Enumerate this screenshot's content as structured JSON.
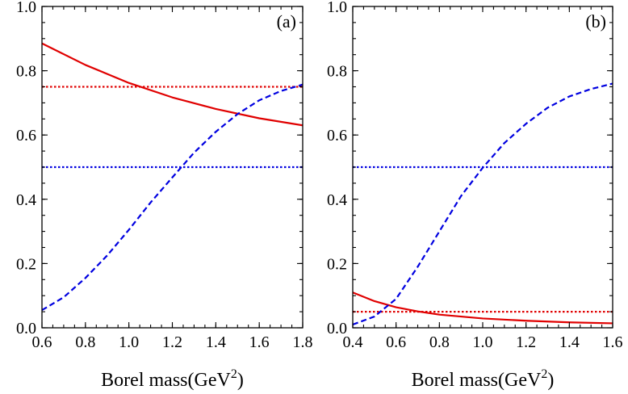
{
  "chart_data": [
    {
      "type": "line",
      "panel_label": "(a)",
      "xlabel_main": "Borel mass(GeV",
      "xlabel_sup": "2",
      "xlabel_tail": ")",
      "xlim": [
        0.6,
        1.8
      ],
      "ylim": [
        0.0,
        1.0
      ],
      "x_ticks": [
        "0.6",
        "0.8",
        "1.0",
        "1.2",
        "1.4",
        "1.6",
        "1.8"
      ],
      "y_ticks": [
        "0.0",
        "0.2",
        "0.4",
        "0.6",
        "0.8",
        "1.0"
      ],
      "series": [
        {
          "color": "#e00000",
          "style": "solid",
          "x": [
            0.6,
            0.8,
            1.0,
            1.2,
            1.4,
            1.6,
            1.8
          ],
          "y": [
            0.885,
            0.818,
            0.762,
            0.717,
            0.681,
            0.652,
            0.63
          ]
        },
        {
          "color": "#e00000",
          "style": "dotted",
          "x": [
            0.6,
            1.8
          ],
          "y": [
            0.75,
            0.75
          ]
        },
        {
          "color": "#0000e0",
          "style": "dashed",
          "x": [
            0.6,
            0.7,
            0.8,
            0.9,
            1.0,
            1.1,
            1.2,
            1.3,
            1.4,
            1.5,
            1.6,
            1.7,
            1.8
          ],
          "y": [
            0.055,
            0.095,
            0.155,
            0.225,
            0.305,
            0.39,
            0.468,
            0.545,
            0.61,
            0.665,
            0.708,
            0.737,
            0.757
          ]
        },
        {
          "color": "#0000e0",
          "style": "dotted",
          "x": [
            0.6,
            1.8
          ],
          "y": [
            0.5,
            0.5
          ]
        }
      ]
    },
    {
      "type": "line",
      "panel_label": "(b)",
      "xlabel_main": "Borel mass(GeV",
      "xlabel_sup": "2",
      "xlabel_tail": ")",
      "xlim": [
        0.4,
        1.6
      ],
      "ylim": [
        0.0,
        1.0
      ],
      "x_ticks": [
        "0.4",
        "0.6",
        "0.8",
        "1.0",
        "1.2",
        "1.4",
        "1.6"
      ],
      "y_ticks": [
        "0.0",
        "0.2",
        "0.4",
        "0.6",
        "0.8",
        "1.0"
      ],
      "series": [
        {
          "color": "#e00000",
          "style": "solid",
          "x": [
            0.4,
            0.5,
            0.6,
            0.7,
            0.8,
            1.0,
            1.2,
            1.4,
            1.6
          ],
          "y": [
            0.11,
            0.083,
            0.064,
            0.051,
            0.041,
            0.029,
            0.022,
            0.017,
            0.014
          ]
        },
        {
          "color": "#e00000",
          "style": "dotted",
          "x": [
            0.4,
            1.6
          ],
          "y": [
            0.05,
            0.05
          ]
        },
        {
          "color": "#0000e0",
          "style": "dashed",
          "x": [
            0.4,
            0.5,
            0.6,
            0.7,
            0.8,
            0.9,
            1.0,
            1.1,
            1.2,
            1.3,
            1.4,
            1.5,
            1.6
          ],
          "y": [
            0.01,
            0.035,
            0.09,
            0.19,
            0.3,
            0.41,
            0.498,
            0.575,
            0.635,
            0.685,
            0.72,
            0.743,
            0.76
          ]
        },
        {
          "color": "#0000e0",
          "style": "dotted",
          "x": [
            0.4,
            1.6
          ],
          "y": [
            0.5,
            0.5
          ]
        }
      ]
    }
  ]
}
